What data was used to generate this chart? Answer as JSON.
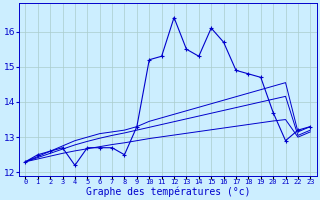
{
  "xlabel": "Graphe des températures (°c)",
  "bg_color": "#cceeff",
  "line_color": "#0000cc",
  "grid_color": "#aacccc",
  "hours": [
    0,
    1,
    2,
    3,
    4,
    5,
    6,
    7,
    8,
    9,
    10,
    11,
    12,
    13,
    14,
    15,
    16,
    17,
    18,
    19,
    20,
    21,
    22,
    23
  ],
  "temp_main": [
    12.3,
    12.5,
    12.6,
    12.7,
    12.2,
    12.7,
    12.7,
    12.7,
    12.5,
    13.3,
    15.2,
    15.3,
    16.4,
    15.5,
    15.3,
    16.1,
    15.7,
    14.9,
    14.8,
    14.7,
    13.7,
    12.9,
    13.2,
    13.3
  ],
  "trend1": [
    12.3,
    12.45,
    12.6,
    12.75,
    12.9,
    13.0,
    13.1,
    13.15,
    13.2,
    13.3,
    13.45,
    13.55,
    13.65,
    13.75,
    13.85,
    13.95,
    14.05,
    14.15,
    14.25,
    14.35,
    14.45,
    14.55,
    13.15,
    13.3
  ],
  "trend2": [
    12.3,
    12.42,
    12.54,
    12.66,
    12.78,
    12.88,
    12.97,
    13.05,
    13.12,
    13.2,
    13.28,
    13.36,
    13.44,
    13.52,
    13.6,
    13.68,
    13.76,
    13.84,
    13.92,
    14.0,
    14.08,
    14.16,
    13.05,
    13.2
  ],
  "trend3": [
    12.3,
    12.38,
    12.46,
    12.54,
    12.61,
    12.67,
    12.73,
    12.79,
    12.84,
    12.9,
    12.96,
    13.01,
    13.06,
    13.11,
    13.16,
    13.21,
    13.26,
    13.31,
    13.36,
    13.41,
    13.46,
    13.5,
    13.0,
    13.15
  ],
  "ylim": [
    11.9,
    16.8
  ],
  "yticks": [
    12,
    13,
    14,
    15,
    16
  ],
  "xtick_fontsize": 5,
  "ytick_fontsize": 6.5,
  "xlabel_fontsize": 7
}
